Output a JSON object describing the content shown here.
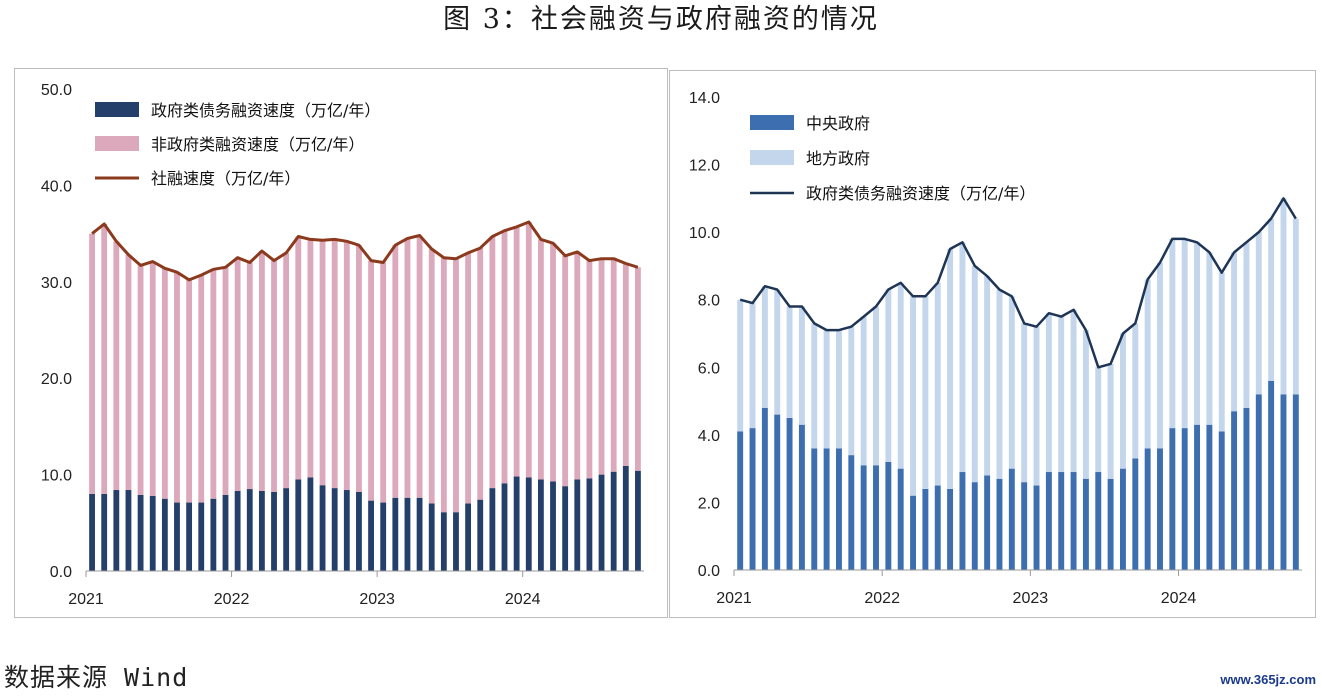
{
  "figure_title": "图 3：社会融资与政府融资的情况",
  "source_note": "数据来源 Wind",
  "watermark": "www.365jz.com",
  "colors": {
    "gov_bar": "#243f6a",
    "nongov_bar": "#dba8bc",
    "social_line": "#8b3a1e",
    "central_bar": "#3d6fb0",
    "local_bar": "#c3d6ec",
    "gov_line": "#1f3556"
  },
  "chart_data": [
    {
      "type": "bar",
      "stacked": true,
      "x_tick_labels": [
        "2021",
        "2022",
        "2023",
        "2024"
      ],
      "x_tick_index": [
        0,
        12,
        24,
        36
      ],
      "ylim": [
        0,
        50
      ],
      "y_ticks": [
        "0.0",
        "10.0",
        "20.0",
        "30.0",
        "40.0",
        "50.0"
      ],
      "grid": false,
      "legend_position": "top-left",
      "series": [
        {
          "name": "政府类债务融资速度（万亿/年）",
          "kind": "bar",
          "values": [
            8.0,
            8.0,
            8.4,
            8.4,
            7.9,
            7.8,
            7.5,
            7.1,
            7.1,
            7.1,
            7.5,
            7.9,
            8.3,
            8.5,
            8.3,
            8.2,
            8.6,
            9.5,
            9.7,
            8.9,
            8.6,
            8.4,
            8.2,
            7.3,
            7.1,
            7.6,
            7.6,
            7.6,
            7.0,
            6.1,
            6.1,
            7.0,
            7.4,
            8.6,
            9.1,
            9.8,
            9.7,
            9.5,
            9.3,
            8.8,
            9.5,
            9.6,
            10.0,
            10.3,
            10.9,
            10.4
          ]
        },
        {
          "name": "非政府类融资速度（万亿/年）",
          "kind": "bar",
          "values": [
            27.0,
            28.0,
            25.8,
            24.4,
            23.8,
            24.3,
            23.9,
            23.9,
            23.1,
            23.6,
            23.8,
            23.6,
            24.2,
            23.5,
            24.9,
            24.0,
            24.4,
            25.2,
            24.7,
            25.4,
            25.8,
            25.8,
            25.6,
            24.9,
            24.9,
            26.2,
            26.9,
            27.2,
            26.4,
            26.4,
            26.3,
            26.0,
            26.1,
            26.1,
            26.2,
            25.9,
            26.5,
            24.9,
            24.7,
            23.9,
            23.6,
            22.6,
            22.4,
            22.1,
            21.0,
            21.1
          ]
        },
        {
          "name": "社融速度（万亿/年）",
          "kind": "line",
          "values": [
            35.0,
            36.0,
            34.2,
            32.8,
            31.7,
            32.1,
            31.4,
            31.0,
            30.2,
            30.7,
            31.3,
            31.5,
            32.5,
            32.0,
            33.2,
            32.2,
            33.0,
            34.7,
            34.4,
            34.3,
            34.4,
            34.2,
            33.8,
            32.2,
            32.0,
            33.8,
            34.5,
            34.8,
            33.4,
            32.5,
            32.4,
            33.0,
            33.5,
            34.7,
            35.3,
            35.7,
            36.2,
            34.4,
            34.0,
            32.7,
            33.1,
            32.2,
            32.4,
            32.4,
            31.9,
            31.5
          ]
        }
      ]
    },
    {
      "type": "bar",
      "stacked": true,
      "x_tick_labels": [
        "2021",
        "2022",
        "2023",
        "2024"
      ],
      "x_tick_index": [
        0,
        12,
        24,
        36
      ],
      "ylim": [
        0,
        14
      ],
      "y_ticks": [
        "0.0",
        "2.0",
        "4.0",
        "6.0",
        "8.0",
        "10.0",
        "12.0",
        "14.0"
      ],
      "grid": false,
      "legend_position": "top-left",
      "series": [
        {
          "name": "中央政府",
          "kind": "bar",
          "values": [
            4.1,
            4.2,
            4.8,
            4.6,
            4.5,
            4.3,
            3.6,
            3.6,
            3.6,
            3.4,
            3.1,
            3.1,
            3.2,
            3.0,
            2.2,
            2.4,
            2.5,
            2.4,
            2.9,
            2.6,
            2.8,
            2.7,
            3.0,
            2.6,
            2.5,
            2.9,
            2.9,
            2.9,
            2.7,
            2.9,
            2.7,
            3.0,
            3.3,
            3.6,
            3.6,
            4.2,
            4.2,
            4.3,
            4.3,
            4.1,
            4.7,
            4.8,
            5.2,
            5.6,
            5.2,
            5.2
          ]
        },
        {
          "name": "地方政府",
          "kind": "bar",
          "values": [
            3.9,
            3.7,
            3.6,
            3.7,
            3.3,
            3.5,
            3.7,
            3.5,
            3.5,
            3.8,
            4.4,
            4.7,
            5.1,
            5.5,
            5.9,
            5.7,
            6.0,
            7.1,
            6.8,
            6.4,
            5.9,
            5.6,
            5.1,
            4.7,
            4.7,
            4.7,
            4.6,
            4.8,
            4.4,
            3.1,
            3.4,
            4.0,
            4.0,
            5.0,
            5.5,
            5.6,
            5.6,
            5.4,
            5.1,
            4.7,
            4.7,
            4.9,
            4.8,
            4.8,
            5.8,
            5.2
          ]
        },
        {
          "name": "政府类债务融资速度（万亿/年）",
          "kind": "line",
          "values": [
            8.0,
            7.9,
            8.4,
            8.3,
            7.8,
            7.8,
            7.3,
            7.1,
            7.1,
            7.2,
            7.5,
            7.8,
            8.3,
            8.5,
            8.1,
            8.1,
            8.5,
            9.5,
            9.7,
            9.0,
            8.7,
            8.3,
            8.1,
            7.3,
            7.2,
            7.6,
            7.5,
            7.7,
            7.1,
            6.0,
            6.1,
            7.0,
            7.3,
            8.6,
            9.1,
            9.8,
            9.8,
            9.7,
            9.4,
            8.8,
            9.4,
            9.7,
            10.0,
            10.4,
            11.0,
            10.4
          ]
        }
      ]
    }
  ]
}
